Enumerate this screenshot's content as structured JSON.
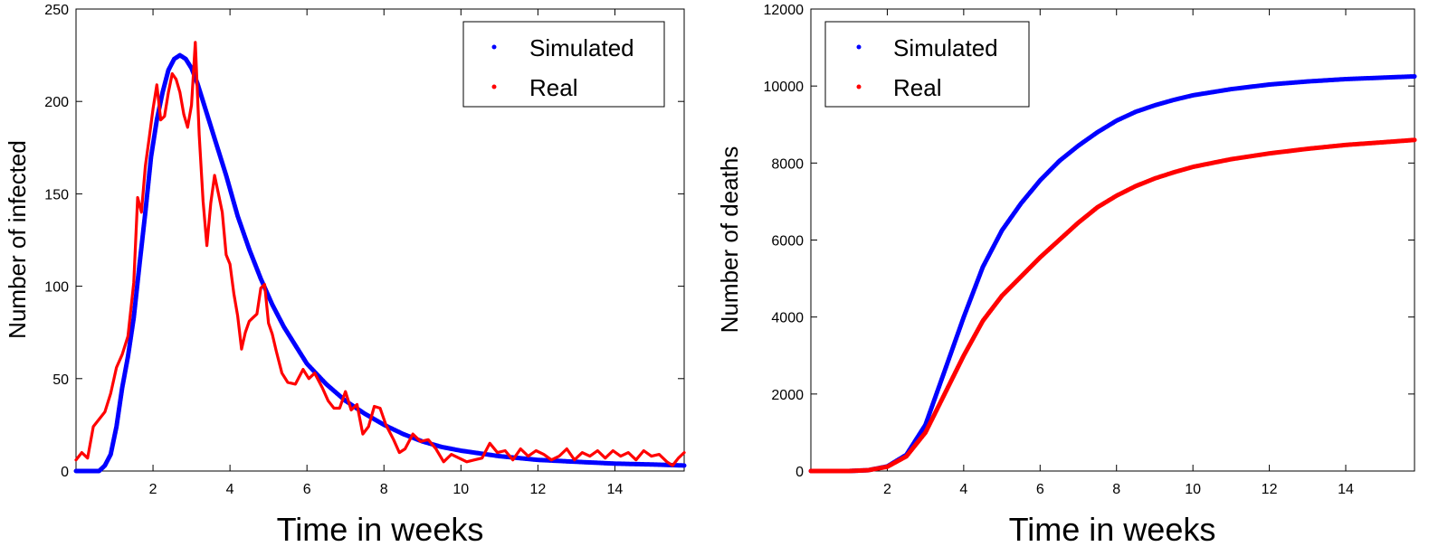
{
  "chart_data": [
    {
      "type": "line",
      "xlabel": "Time in weeks",
      "ylabel": "Number of infected",
      "xlim": [
        0,
        15.8
      ],
      "ylim": [
        0,
        250
      ],
      "xticks": [
        "2",
        "4",
        "6",
        "8",
        "10",
        "12",
        "14"
      ],
      "yticks": [
        "0",
        "50",
        "100",
        "150",
        "200",
        "250"
      ],
      "legend_position": "top-right",
      "series": [
        {
          "name": "Simulated",
          "color": "#0000ff",
          "style": "dots",
          "points": [
            [
              0,
              0
            ],
            [
              0.3,
              0
            ],
            [
              0.6,
              0
            ],
            [
              0.75,
              3
            ],
            [
              0.9,
              9
            ],
            [
              1.05,
              24
            ],
            [
              1.2,
              45
            ],
            [
              1.35,
              62
            ],
            [
              1.5,
              83
            ],
            [
              1.65,
              112
            ],
            [
              1.8,
              140
            ],
            [
              1.95,
              170
            ],
            [
              2.1,
              190
            ],
            [
              2.25,
              205
            ],
            [
              2.4,
              217
            ],
            [
              2.55,
              223
            ],
            [
              2.7,
              225
            ],
            [
              2.85,
              223
            ],
            [
              3.0,
              218
            ],
            [
              3.15,
              210
            ],
            [
              3.3,
              200
            ],
            [
              3.6,
              180
            ],
            [
              3.9,
              160
            ],
            [
              4.2,
              138
            ],
            [
              4.5,
              120
            ],
            [
              4.8,
              104
            ],
            [
              5.1,
              90
            ],
            [
              5.4,
              78
            ],
            [
              5.7,
              68
            ],
            [
              6.0,
              58
            ],
            [
              6.5,
              47
            ],
            [
              7.0,
              38
            ],
            [
              7.5,
              31
            ],
            [
              8.0,
              25
            ],
            [
              8.5,
              20
            ],
            [
              9.0,
              16
            ],
            [
              9.5,
              13
            ],
            [
              10.0,
              11
            ],
            [
              11.0,
              8
            ],
            [
              12.0,
              6
            ],
            [
              13.0,
              5
            ],
            [
              14.0,
              4
            ],
            [
              15.0,
              3.5
            ],
            [
              15.8,
              3
            ]
          ]
        },
        {
          "name": "Real",
          "color": "#ff0000",
          "style": "line",
          "points": [
            [
              0,
              6
            ],
            [
              0.15,
              10
            ],
            [
              0.3,
              7
            ],
            [
              0.45,
              24
            ],
            [
              0.6,
              28
            ],
            [
              0.75,
              32
            ],
            [
              0.9,
              42
            ],
            [
              1.05,
              56
            ],
            [
              1.2,
              63
            ],
            [
              1.35,
              73
            ],
            [
              1.5,
              102
            ],
            [
              1.6,
              148
            ],
            [
              1.7,
              140
            ],
            [
              1.8,
              165
            ],
            [
              1.9,
              180
            ],
            [
              2.0,
              196
            ],
            [
              2.1,
              209
            ],
            [
              2.2,
              190
            ],
            [
              2.3,
              192
            ],
            [
              2.4,
              205
            ],
            [
              2.5,
              215
            ],
            [
              2.6,
              212
            ],
            [
              2.7,
              205
            ],
            [
              2.8,
              193
            ],
            [
              2.9,
              186
            ],
            [
              3.0,
              198
            ],
            [
              3.1,
              232
            ],
            [
              3.2,
              182
            ],
            [
              3.3,
              146
            ],
            [
              3.4,
              122
            ],
            [
              3.5,
              145
            ],
            [
              3.6,
              160
            ],
            [
              3.7,
              150
            ],
            [
              3.8,
              140
            ],
            [
              3.9,
              117
            ],
            [
              4.0,
              112
            ],
            [
              4.1,
              96
            ],
            [
              4.2,
              84
            ],
            [
              4.3,
              66
            ],
            [
              4.4,
              75
            ],
            [
              4.5,
              81
            ],
            [
              4.6,
              83
            ],
            [
              4.7,
              85
            ],
            [
              4.8,
              99
            ],
            [
              4.9,
              101
            ],
            [
              5.0,
              80
            ],
            [
              5.1,
              74
            ],
            [
              5.2,
              65
            ],
            [
              5.35,
              53
            ],
            [
              5.5,
              48
            ],
            [
              5.7,
              47
            ],
            [
              5.9,
              55
            ],
            [
              6.05,
              50
            ],
            [
              6.2,
              53
            ],
            [
              6.4,
              45
            ],
            [
              6.55,
              38
            ],
            [
              6.7,
              34
            ],
            [
              6.85,
              34
            ],
            [
              7.0,
              43
            ],
            [
              7.15,
              33
            ],
            [
              7.3,
              36
            ],
            [
              7.45,
              20
            ],
            [
              7.6,
              24
            ],
            [
              7.75,
              35
            ],
            [
              7.9,
              34
            ],
            [
              8.05,
              25
            ],
            [
              8.25,
              17
            ],
            [
              8.4,
              10
            ],
            [
              8.55,
              12
            ],
            [
              8.75,
              20
            ],
            [
              8.95,
              16
            ],
            [
              9.15,
              17
            ],
            [
              9.35,
              12
            ],
            [
              9.55,
              5
            ],
            [
              9.75,
              9
            ],
            [
              9.95,
              7
            ],
            [
              10.15,
              5
            ],
            [
              10.35,
              6
            ],
            [
              10.55,
              7
            ],
            [
              10.75,
              15
            ],
            [
              10.95,
              10
            ],
            [
              11.15,
              11
            ],
            [
              11.35,
              6
            ],
            [
              11.55,
              12
            ],
            [
              11.75,
              8
            ],
            [
              11.95,
              11
            ],
            [
              12.15,
              9
            ],
            [
              12.35,
              6
            ],
            [
              12.55,
              8
            ],
            [
              12.75,
              12
            ],
            [
              12.95,
              6
            ],
            [
              13.15,
              10
            ],
            [
              13.35,
              8
            ],
            [
              13.55,
              11
            ],
            [
              13.75,
              7
            ],
            [
              13.95,
              11
            ],
            [
              14.15,
              8
            ],
            [
              14.35,
              10
            ],
            [
              14.55,
              6
            ],
            [
              14.75,
              11
            ],
            [
              14.95,
              8
            ],
            [
              15.15,
              9
            ],
            [
              15.35,
              5
            ],
            [
              15.5,
              3
            ],
            [
              15.65,
              7
            ],
            [
              15.8,
              10
            ]
          ]
        }
      ]
    },
    {
      "type": "line",
      "xlabel": "Time in weeks",
      "ylabel": "Number of deaths",
      "xlim": [
        0,
        15.8
      ],
      "ylim": [
        0,
        12000
      ],
      "xticks": [
        "2",
        "4",
        "6",
        "8",
        "10",
        "12",
        "14"
      ],
      "yticks": [
        "0",
        "2000",
        "4000",
        "6000",
        "8000",
        "10000",
        "12000"
      ],
      "legend_position": "top-left",
      "series": [
        {
          "name": "Simulated",
          "color": "#0000ff",
          "style": "dots",
          "points": [
            [
              0,
              0
            ],
            [
              1.0,
              0
            ],
            [
              1.5,
              20
            ],
            [
              2.0,
              120
            ],
            [
              2.5,
              420
            ],
            [
              3.0,
              1200
            ],
            [
              3.5,
              2600
            ],
            [
              4.0,
              4000
            ],
            [
              4.5,
              5300
            ],
            [
              5.0,
              6250
            ],
            [
              5.5,
              6950
            ],
            [
              6.0,
              7550
            ],
            [
              6.5,
              8050
            ],
            [
              7.0,
              8450
            ],
            [
              7.5,
              8800
            ],
            [
              8.0,
              9100
            ],
            [
              8.5,
              9330
            ],
            [
              9.0,
              9500
            ],
            [
              9.5,
              9640
            ],
            [
              10.0,
              9760
            ],
            [
              11.0,
              9920
            ],
            [
              12.0,
              10040
            ],
            [
              13.0,
              10120
            ],
            [
              14.0,
              10180
            ],
            [
              15.0,
              10220
            ],
            [
              15.8,
              10250
            ]
          ]
        },
        {
          "name": "Real",
          "color": "#ff0000",
          "style": "dots",
          "points": [
            [
              0,
              0
            ],
            [
              1.0,
              0
            ],
            [
              1.5,
              20
            ],
            [
              2.0,
              110
            ],
            [
              2.5,
              380
            ],
            [
              3.0,
              1000
            ],
            [
              3.5,
              2000
            ],
            [
              4.0,
              3000
            ],
            [
              4.5,
              3900
            ],
            [
              5.0,
              4550
            ],
            [
              5.5,
              5050
            ],
            [
              6.0,
              5550
            ],
            [
              6.5,
              6000
            ],
            [
              7.0,
              6450
            ],
            [
              7.5,
              6850
            ],
            [
              8.0,
              7150
            ],
            [
              8.5,
              7400
            ],
            [
              9.0,
              7600
            ],
            [
              9.5,
              7760
            ],
            [
              10.0,
              7900
            ],
            [
              10.5,
              8000
            ],
            [
              11.0,
              8100
            ],
            [
              12.0,
              8250
            ],
            [
              13.0,
              8370
            ],
            [
              14.0,
              8470
            ],
            [
              15.0,
              8540
            ],
            [
              15.8,
              8600
            ]
          ]
        }
      ]
    }
  ]
}
